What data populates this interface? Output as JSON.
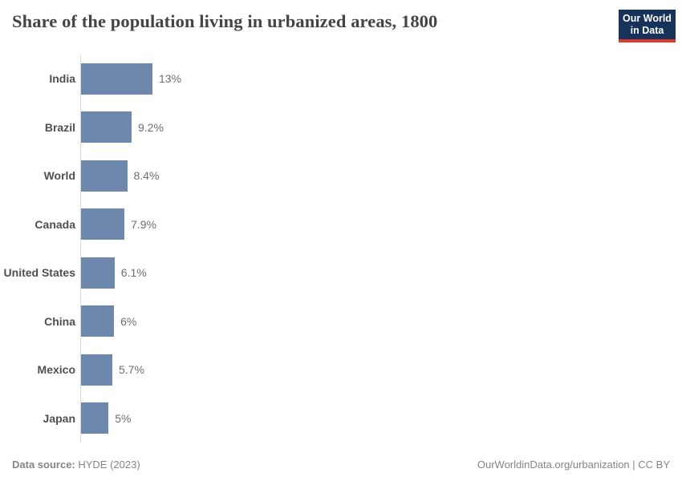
{
  "header": {
    "title": "Share of the population living in urbanized areas, 1800",
    "logo": {
      "line1": "Our World",
      "line2": "in Data",
      "background_color": "#18335a",
      "underline_color": "#dc3a2f"
    }
  },
  "chart_data": {
    "type": "bar",
    "orientation": "horizontal",
    "title": "Share of the population living in urbanized areas, 1800",
    "categories": [
      "India",
      "Brazil",
      "World",
      "Canada",
      "United States",
      "China",
      "Mexico",
      "Japan"
    ],
    "values": [
      13,
      9.2,
      8.4,
      7.9,
      6.1,
      6,
      5.7,
      5
    ],
    "value_labels": [
      "13%",
      "9.2%",
      "8.4%",
      "7.9%",
      "6.1%",
      "6%",
      "5.7%",
      "5%"
    ],
    "unit": "%",
    "xlabel": "",
    "ylabel": "",
    "xlim": [
      0,
      13
    ],
    "grid": false,
    "legend": "none",
    "bar_color": "#6e87ad",
    "axis_line_color": "#dadada"
  },
  "footer": {
    "source_label": "Data source:",
    "source_value": " HYDE (2023)",
    "attribution": "OurWorldinData.org/urbanization | CC BY"
  }
}
